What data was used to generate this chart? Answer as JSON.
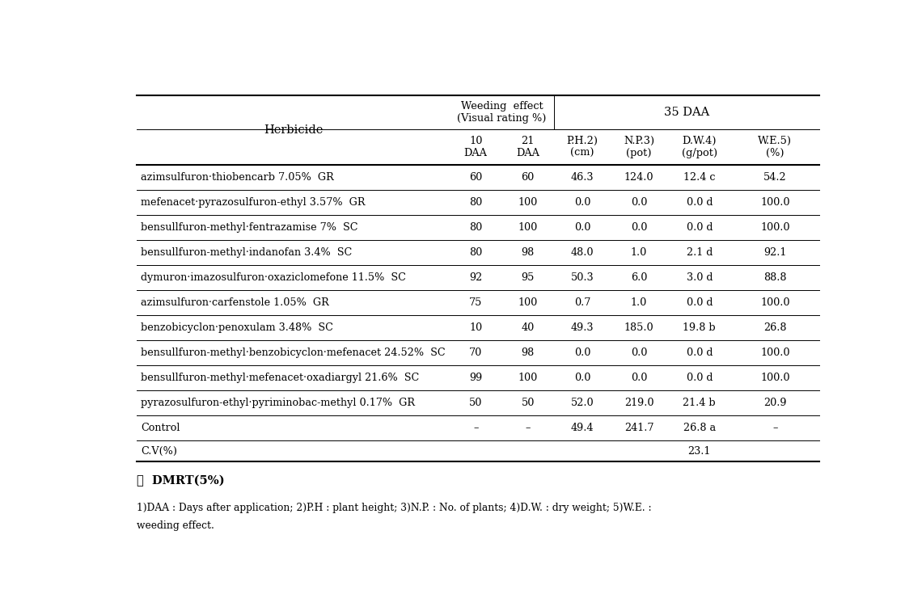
{
  "herbicide_header": "Herbicide",
  "weeding_header1": "Weeding  effect",
  "weeding_header2": "(Visual rating %)",
  "daa35_header": "35 DAA",
  "sub_headers": [
    "10\nDAA",
    "21\nDAA",
    "P.H.2)\n(cm)",
    "N.P.3)\n(pot)",
    "D.W.4)\n(g/pot)",
    "W.E.5)\n(%)"
  ],
  "rows": [
    [
      "azimsulfuron·thiobencarb 7.05%  GR",
      "60",
      "60",
      "46.3",
      "124.0",
      "12.4 c",
      "54.2"
    ],
    [
      "mefenacet·pyrazosulfuron-ethyl 3.57%  GR",
      "80",
      "100",
      "0.0",
      "0.0",
      "0.0 d",
      "100.0"
    ],
    [
      "bensullfuron-methyl·fentrazamise 7%  SC",
      "80",
      "100",
      "0.0",
      "0.0",
      "0.0 d",
      "100.0"
    ],
    [
      "bensullfuron-methyl·indanofan 3.4%  SC",
      "80",
      "98",
      "48.0",
      "1.0",
      "2.1 d",
      "92.1"
    ],
    [
      "dymuron·imazosulfuron·oxaziclomefone 11.5%  SC",
      "92",
      "95",
      "50.3",
      "6.0",
      "3.0 d",
      "88.8"
    ],
    [
      "azimsulfuron·carfenstole 1.05%  GR",
      "75",
      "100",
      "0.7",
      "1.0",
      "0.0 d",
      "100.0"
    ],
    [
      "benzobicyclon·penoxulam 3.48%  SC",
      "10",
      "40",
      "49.3",
      "185.0",
      "19.8 b",
      "26.8"
    ],
    [
      "bensullfuron-methyl·benzobicyclon·mefenacet 24.52%  SC",
      "70",
      "98",
      "0.0",
      "0.0",
      "0.0 d",
      "100.0"
    ],
    [
      "bensullfuron-methyl·mefenacet·oxadiargyl 21.6%  SC",
      "99",
      "100",
      "0.0",
      "0.0",
      "0.0 d",
      "100.0"
    ],
    [
      "pyrazosulfuron-ethyl·pyriminobac-methyl 0.17%  GR",
      "50",
      "50",
      "52.0",
      "219.0",
      "21.4 b",
      "20.9"
    ],
    [
      "Control",
      "–",
      "–",
      "49.4",
      "241.7",
      "26.8 a",
      "–"
    ]
  ],
  "cv_label": "C.V(%)",
  "cv_value": "23.1",
  "cv_col_index": 5,
  "footnote_symbol": "※  DMRT(5%)",
  "footnote_line1": "1)DAA : Days after application; 2)P.H : plant height; 3)N.P. : No. of plants; 4)D.W. : dry weight; 5)W.E. :",
  "footnote_line2": "weeding effect.",
  "bg_color": "#ffffff",
  "line_color": "#000000"
}
